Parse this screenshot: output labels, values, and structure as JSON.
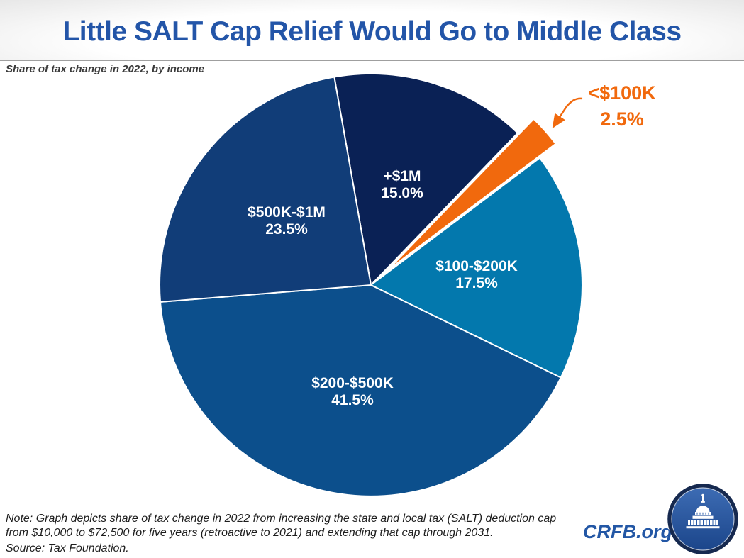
{
  "header": {
    "title": "Little SALT Cap Relief Would Go to Middle Class",
    "subtitle": "Share of tax change in 2022, by income"
  },
  "chart_data": {
    "type": "pie",
    "title": "Little SALT Cap Relief Would Go to Middle Class",
    "subtitle": "Share of tax change in 2022, by income",
    "unit": "percent share of tax change",
    "start_angle_deg": -10,
    "legend": "none",
    "labels_on_slices": true,
    "slices": [
      {
        "label": "+$1M",
        "value": 15.0,
        "display": "15.0%",
        "color": "#0A2155",
        "exploded": false
      },
      {
        "label": "<$100K",
        "value": 2.5,
        "display": "2.5%",
        "color": "#F1690D",
        "exploded": true,
        "callout": "external orange label with arrow"
      },
      {
        "label": "$100-$200K",
        "value": 17.5,
        "display": "17.5%",
        "color": "#0378AD",
        "exploded": false
      },
      {
        "label": "$200-$500K",
        "value": 41.5,
        "display": "41.5%",
        "color": "#0C4F8C",
        "exploded": false
      },
      {
        "label": "$500K-$1M",
        "value": 23.5,
        "display": "23.5%",
        "color": "#113D78",
        "exploded": false
      }
    ]
  },
  "footer": {
    "note_line1": "Note: Graph depicts share of tax change in 2022 from increasing the state and local tax (SALT) deduction cap",
    "note_line2": "from $10,000 to $72,500 for five years (retroactive to 2021) and extending that cap through 2031.",
    "source": "Source: Tax Foundation.",
    "brand": "CRFB.org",
    "logo": "capitol-dome-icon"
  },
  "colors": {
    "title_blue": "#2355A8",
    "brand_blue": "#2357A5",
    "accent_orange": "#F1690D",
    "header_rule": "#9f9f9f"
  }
}
